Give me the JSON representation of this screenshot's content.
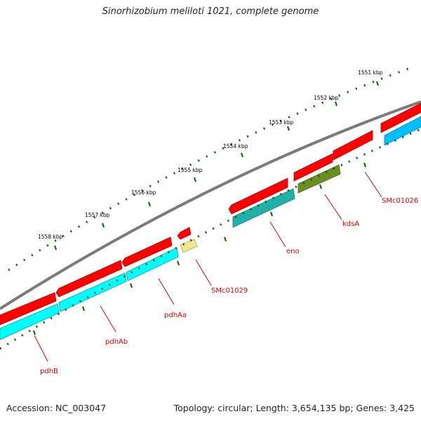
{
  "title": "Sinorhizobium meliloti 1021, complete genome",
  "footer": {
    "accession": "Accession: NC_003047",
    "topology": "Topology: circular; Length: 3,654,135 bp; Genes: 3,425"
  },
  "ruler_labels": [
    "1551 kbp",
    "1552 kbp",
    "1553 kbp",
    "1554 kbp",
    "1555 kbp",
    "1556 kbp",
    "1557 kbp",
    "1558 kbp"
  ],
  "gene_labels": [
    "SMc01026",
    "kdsA",
    "eno",
    "SMc01029",
    "pdhAa",
    "pdhAb",
    "pdhB"
  ],
  "colors": {
    "cds": "#ff0000",
    "gene_cyan": "#00ffff",
    "gene_teal": "#20b2aa",
    "gene_blue": "#00bfff",
    "gene_olive": "#6b8e23",
    "gene_khaki": "#f0e68c",
    "backbone": "#808080",
    "ticks": "#006400",
    "label": "#e00000"
  }
}
